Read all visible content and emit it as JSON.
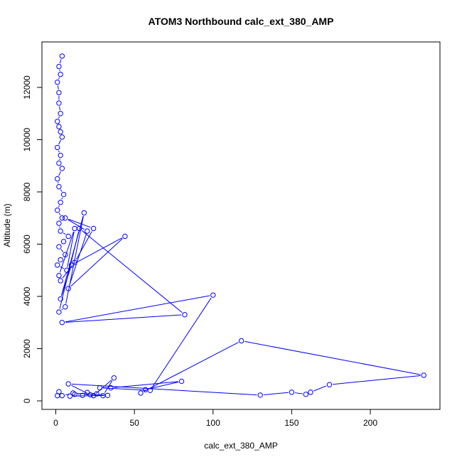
{
  "chart_data": {
    "type": "line",
    "title": "ATOM3 Northbound calc_ext_380_AMP",
    "xlabel": "calc_ext_380_AMP",
    "ylabel": "Altitude (m)",
    "xlim": [
      0,
      234
    ],
    "ylim": [
      0,
      13200
    ],
    "x_ticks": [
      "0",
      "50",
      "100",
      "150",
      "200"
    ],
    "y_ticks": [
      "0",
      "2000",
      "4000",
      "6000",
      "8000",
      "10000",
      "12000"
    ],
    "grid": false,
    "color": "#0000ff",
    "series": [
      {
        "x": [
          4,
          2,
          3,
          1,
          2,
          2,
          3,
          1,
          2,
          3,
          4,
          1,
          3,
          2,
          4,
          1,
          2,
          5,
          3,
          1,
          4,
          2,
          3,
          8,
          5,
          2,
          6,
          3,
          1,
          7,
          12,
          2,
          3,
          12,
          24,
          6,
          20,
          8,
          44,
          10,
          3,
          18,
          6,
          2,
          15,
          82,
          4,
          100,
          60,
          28,
          35,
          80,
          57,
          54,
          118,
          234,
          174,
          162,
          159,
          150,
          130,
          8,
          22,
          26,
          30,
          37,
          24,
          20,
          17,
          12,
          9,
          33,
          11,
          4,
          2,
          1
        ],
        "y": [
          13200,
          12800,
          12500,
          12200,
          11800,
          11400,
          11000,
          10700,
          10500,
          10300,
          10100,
          9700,
          9400,
          9100,
          8900,
          8500,
          8200,
          7900,
          7600,
          7300,
          7000,
          6800,
          6500,
          6300,
          6100,
          5900,
          5600,
          5400,
          5200,
          5000,
          6600,
          4800,
          4600,
          5300,
          6600,
          7000,
          6500,
          4300,
          6300,
          5200,
          3900,
          7200,
          3600,
          3400,
          6600,
          3300,
          3000,
          4050,
          400,
          500,
          500,
          750,
          430,
          300,
          2300,
          980,
          620,
          330,
          250,
          330,
          220,
          650,
          230,
          270,
          200,
          880,
          200,
          320,
          210,
          250,
          180,
          210,
          300,
          200,
          350,
          200
        ]
      }
    ]
  }
}
